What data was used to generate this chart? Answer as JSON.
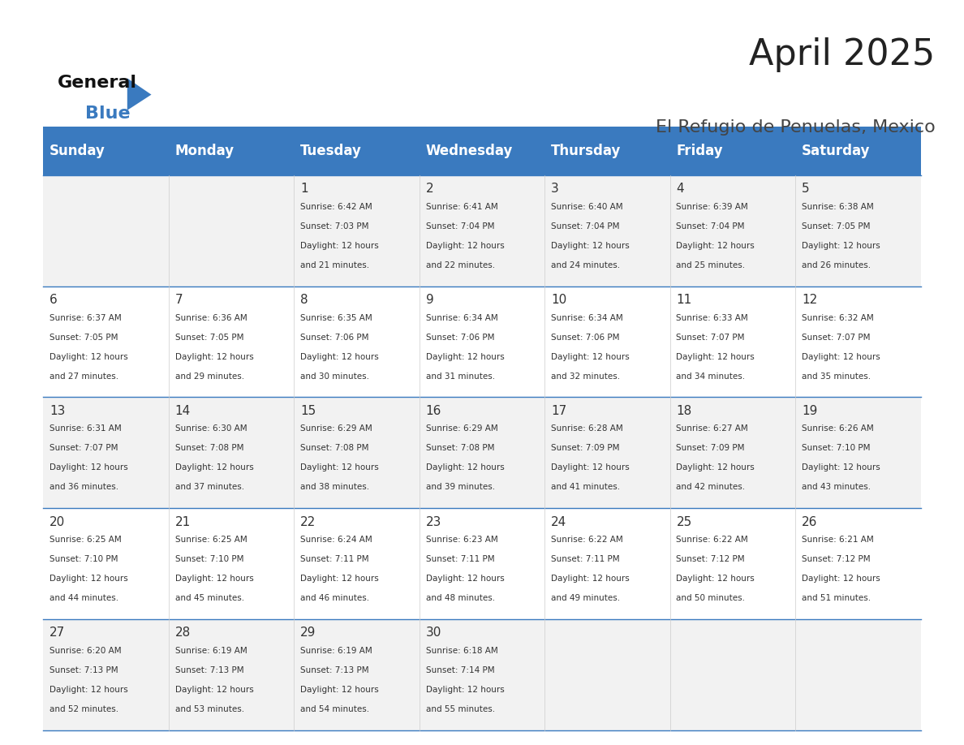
{
  "title": "April 2025",
  "subtitle": "El Refugio de Penuelas, Mexico",
  "header_bg_color": "#3a7abf",
  "header_text_color": "#ffffff",
  "day_names": [
    "Sunday",
    "Monday",
    "Tuesday",
    "Wednesday",
    "Thursday",
    "Friday",
    "Saturday"
  ],
  "row_bg_even": "#f2f2f2",
  "row_bg_odd": "#ffffff",
  "border_color": "#3a7abf",
  "text_color": "#333333",
  "days": [
    {
      "day": 1,
      "col": 2,
      "row": 0,
      "sunrise": "6:42 AM",
      "sunset": "7:03 PM",
      "daylight": "12 hours and 21 minutes."
    },
    {
      "day": 2,
      "col": 3,
      "row": 0,
      "sunrise": "6:41 AM",
      "sunset": "7:04 PM",
      "daylight": "12 hours and 22 minutes."
    },
    {
      "day": 3,
      "col": 4,
      "row": 0,
      "sunrise": "6:40 AM",
      "sunset": "7:04 PM",
      "daylight": "12 hours and 24 minutes."
    },
    {
      "day": 4,
      "col": 5,
      "row": 0,
      "sunrise": "6:39 AM",
      "sunset": "7:04 PM",
      "daylight": "12 hours and 25 minutes."
    },
    {
      "day": 5,
      "col": 6,
      "row": 0,
      "sunrise": "6:38 AM",
      "sunset": "7:05 PM",
      "daylight": "12 hours and 26 minutes."
    },
    {
      "day": 6,
      "col": 0,
      "row": 1,
      "sunrise": "6:37 AM",
      "sunset": "7:05 PM",
      "daylight": "12 hours and 27 minutes."
    },
    {
      "day": 7,
      "col": 1,
      "row": 1,
      "sunrise": "6:36 AM",
      "sunset": "7:05 PM",
      "daylight": "12 hours and 29 minutes."
    },
    {
      "day": 8,
      "col": 2,
      "row": 1,
      "sunrise": "6:35 AM",
      "sunset": "7:06 PM",
      "daylight": "12 hours and 30 minutes."
    },
    {
      "day": 9,
      "col": 3,
      "row": 1,
      "sunrise": "6:34 AM",
      "sunset": "7:06 PM",
      "daylight": "12 hours and 31 minutes."
    },
    {
      "day": 10,
      "col": 4,
      "row": 1,
      "sunrise": "6:34 AM",
      "sunset": "7:06 PM",
      "daylight": "12 hours and 32 minutes."
    },
    {
      "day": 11,
      "col": 5,
      "row": 1,
      "sunrise": "6:33 AM",
      "sunset": "7:07 PM",
      "daylight": "12 hours and 34 minutes."
    },
    {
      "day": 12,
      "col": 6,
      "row": 1,
      "sunrise": "6:32 AM",
      "sunset": "7:07 PM",
      "daylight": "12 hours and 35 minutes."
    },
    {
      "day": 13,
      "col": 0,
      "row": 2,
      "sunrise": "6:31 AM",
      "sunset": "7:07 PM",
      "daylight": "12 hours and 36 minutes."
    },
    {
      "day": 14,
      "col": 1,
      "row": 2,
      "sunrise": "6:30 AM",
      "sunset": "7:08 PM",
      "daylight": "12 hours and 37 minutes."
    },
    {
      "day": 15,
      "col": 2,
      "row": 2,
      "sunrise": "6:29 AM",
      "sunset": "7:08 PM",
      "daylight": "12 hours and 38 minutes."
    },
    {
      "day": 16,
      "col": 3,
      "row": 2,
      "sunrise": "6:29 AM",
      "sunset": "7:08 PM",
      "daylight": "12 hours and 39 minutes."
    },
    {
      "day": 17,
      "col": 4,
      "row": 2,
      "sunrise": "6:28 AM",
      "sunset": "7:09 PM",
      "daylight": "12 hours and 41 minutes."
    },
    {
      "day": 18,
      "col": 5,
      "row": 2,
      "sunrise": "6:27 AM",
      "sunset": "7:09 PM",
      "daylight": "12 hours and 42 minutes."
    },
    {
      "day": 19,
      "col": 6,
      "row": 2,
      "sunrise": "6:26 AM",
      "sunset": "7:10 PM",
      "daylight": "12 hours and 43 minutes."
    },
    {
      "day": 20,
      "col": 0,
      "row": 3,
      "sunrise": "6:25 AM",
      "sunset": "7:10 PM",
      "daylight": "12 hours and 44 minutes."
    },
    {
      "day": 21,
      "col": 1,
      "row": 3,
      "sunrise": "6:25 AM",
      "sunset": "7:10 PM",
      "daylight": "12 hours and 45 minutes."
    },
    {
      "day": 22,
      "col": 2,
      "row": 3,
      "sunrise": "6:24 AM",
      "sunset": "7:11 PM",
      "daylight": "12 hours and 46 minutes."
    },
    {
      "day": 23,
      "col": 3,
      "row": 3,
      "sunrise": "6:23 AM",
      "sunset": "7:11 PM",
      "daylight": "12 hours and 48 minutes."
    },
    {
      "day": 24,
      "col": 4,
      "row": 3,
      "sunrise": "6:22 AM",
      "sunset": "7:11 PM",
      "daylight": "12 hours and 49 minutes."
    },
    {
      "day": 25,
      "col": 5,
      "row": 3,
      "sunrise": "6:22 AM",
      "sunset": "7:12 PM",
      "daylight": "12 hours and 50 minutes."
    },
    {
      "day": 26,
      "col": 6,
      "row": 3,
      "sunrise": "6:21 AM",
      "sunset": "7:12 PM",
      "daylight": "12 hours and 51 minutes."
    },
    {
      "day": 27,
      "col": 0,
      "row": 4,
      "sunrise": "6:20 AM",
      "sunset": "7:13 PM",
      "daylight": "12 hours and 52 minutes."
    },
    {
      "day": 28,
      "col": 1,
      "row": 4,
      "sunrise": "6:19 AM",
      "sunset": "7:13 PM",
      "daylight": "12 hours and 53 minutes."
    },
    {
      "day": 29,
      "col": 2,
      "row": 4,
      "sunrise": "6:19 AM",
      "sunset": "7:13 PM",
      "daylight": "12 hours and 54 minutes."
    },
    {
      "day": 30,
      "col": 3,
      "row": 4,
      "sunrise": "6:18 AM",
      "sunset": "7:14 PM",
      "daylight": "12 hours and 55 minutes."
    }
  ]
}
